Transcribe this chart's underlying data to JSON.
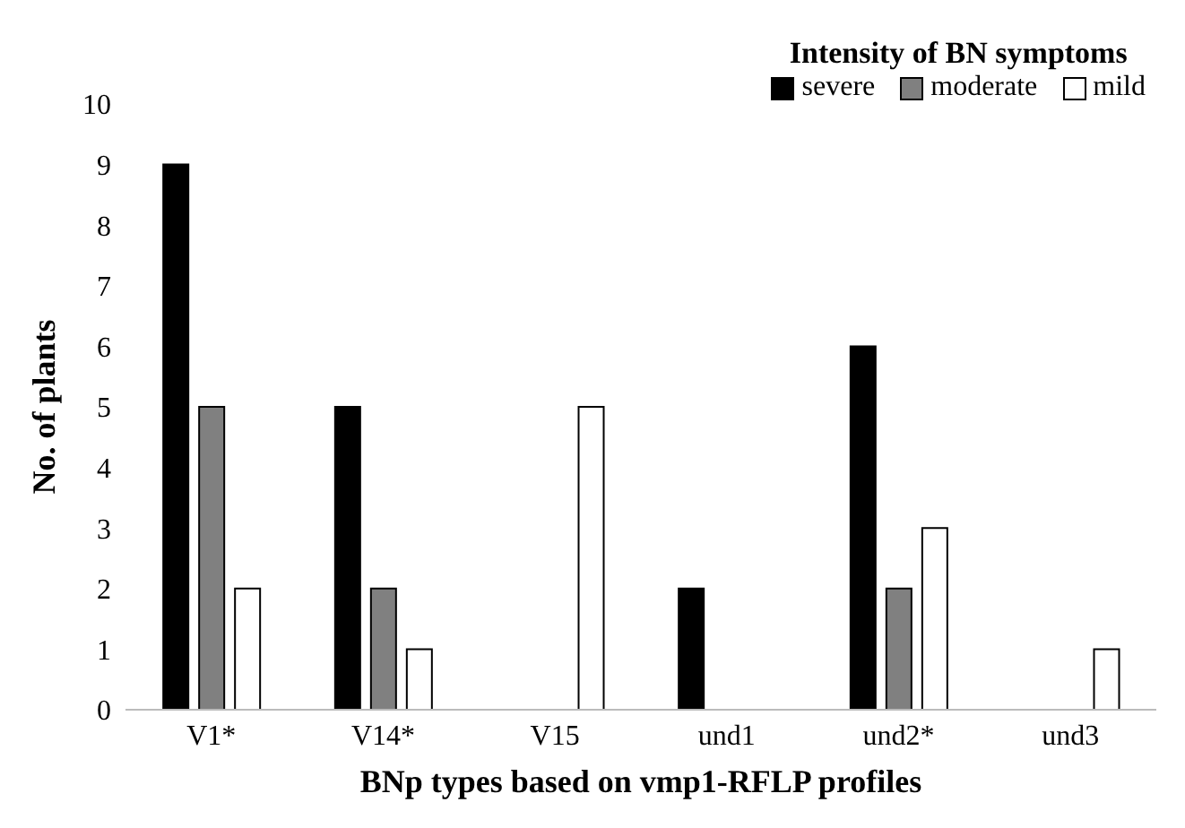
{
  "chart_data": {
    "type": "bar",
    "xlabel": "BNp types based on vmp1-RFLP profiles",
    "ylabel": "No. of plants",
    "legend_title": "Intensity of BN symptoms",
    "categories": [
      "V1*",
      "V14*",
      "V15",
      "und1",
      "und2*",
      "und3"
    ],
    "series": [
      {
        "name": "severe",
        "color": "#000000",
        "values": [
          9,
          5,
          0,
          2,
          6,
          0
        ]
      },
      {
        "name": "moderate",
        "color": "#808080",
        "values": [
          5,
          2,
          0,
          0,
          2,
          0
        ]
      },
      {
        "name": "mild",
        "color": "#ffffff",
        "values": [
          2,
          1,
          5,
          0,
          3,
          1
        ]
      }
    ],
    "ylim": [
      0,
      10
    ],
    "yticks": [
      0,
      1,
      2,
      3,
      4,
      5,
      6,
      7,
      8,
      9,
      10
    ],
    "grid": false,
    "legend": "top right"
  }
}
